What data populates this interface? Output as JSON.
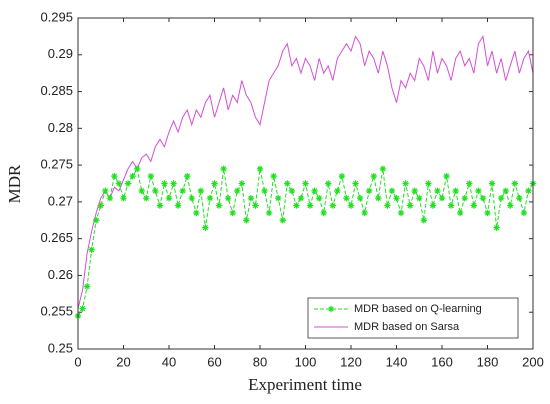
{
  "chart_data": {
    "type": "line",
    "xlabel": "Experiment time",
    "ylabel": "MDR",
    "x": [
      0,
      2,
      4,
      6,
      8,
      10,
      12,
      14,
      16,
      18,
      20,
      22,
      24,
      26,
      28,
      30,
      32,
      34,
      36,
      38,
      40,
      42,
      44,
      46,
      48,
      50,
      52,
      54,
      56,
      58,
      60,
      62,
      64,
      66,
      68,
      70,
      72,
      74,
      76,
      78,
      80,
      82,
      84,
      86,
      88,
      90,
      92,
      94,
      96,
      98,
      100,
      102,
      104,
      106,
      108,
      110,
      112,
      114,
      116,
      118,
      120,
      122,
      124,
      126,
      128,
      130,
      132,
      134,
      136,
      138,
      140,
      142,
      144,
      146,
      148,
      150,
      152,
      154,
      156,
      158,
      160,
      162,
      164,
      166,
      168,
      170,
      172,
      174,
      176,
      178,
      180,
      182,
      184,
      186,
      188,
      190,
      192,
      194,
      196,
      198,
      200
    ],
    "series": [
      {
        "name": "MDR based on Q-learning",
        "color": "#22e022",
        "dash": true,
        "marker": "star",
        "values": [
          0.2545,
          0.2555,
          0.2585,
          0.2635,
          0.2675,
          0.2695,
          0.2715,
          0.2705,
          0.2735,
          0.2725,
          0.2705,
          0.2725,
          0.2735,
          0.2745,
          0.2715,
          0.2705,
          0.2735,
          0.2715,
          0.2695,
          0.2725,
          0.2705,
          0.2725,
          0.2695,
          0.2715,
          0.2735,
          0.2705,
          0.2685,
          0.2715,
          0.2665,
          0.2705,
          0.2725,
          0.2695,
          0.2745,
          0.2705,
          0.2685,
          0.2715,
          0.2725,
          0.2675,
          0.2705,
          0.2695,
          0.2745,
          0.2715,
          0.2685,
          0.2735,
          0.2705,
          0.2675,
          0.2725,
          0.2715,
          0.2695,
          0.2705,
          0.2725,
          0.2695,
          0.2715,
          0.2705,
          0.2685,
          0.2725,
          0.2695,
          0.2715,
          0.2735,
          0.2705,
          0.2695,
          0.2725,
          0.2705,
          0.2685,
          0.2715,
          0.2735,
          0.2705,
          0.2745,
          0.2695,
          0.2715,
          0.2705,
          0.2685,
          0.2725,
          0.2695,
          0.2715,
          0.2705,
          0.2675,
          0.2725,
          0.2695,
          0.2715,
          0.2705,
          0.2735,
          0.2695,
          0.2715,
          0.2685,
          0.2705,
          0.2725,
          0.2695,
          0.2715,
          0.2705,
          0.2685,
          0.2725,
          0.2665,
          0.2705,
          0.2715,
          0.2695,
          0.2725,
          0.2705,
          0.2685,
          0.2715,
          0.2725
        ]
      },
      {
        "name": "MDR based on Sarsa",
        "color": "#d64fd6",
        "dash": false,
        "marker": "none",
        "values": [
          0.2555,
          0.258,
          0.263,
          0.266,
          0.2685,
          0.2705,
          0.2715,
          0.2705,
          0.272,
          0.2715,
          0.273,
          0.2745,
          0.2755,
          0.2745,
          0.276,
          0.2765,
          0.2755,
          0.2775,
          0.2785,
          0.2775,
          0.2795,
          0.281,
          0.2795,
          0.2815,
          0.2825,
          0.2805,
          0.2825,
          0.2815,
          0.2835,
          0.2845,
          0.2815,
          0.2835,
          0.2855,
          0.2825,
          0.2845,
          0.2835,
          0.2865,
          0.2845,
          0.2835,
          0.2815,
          0.2805,
          0.2835,
          0.2865,
          0.2875,
          0.2885,
          0.2905,
          0.2915,
          0.2885,
          0.2895,
          0.2875,
          0.2895,
          0.2885,
          0.2865,
          0.2895,
          0.2875,
          0.2885,
          0.2865,
          0.2895,
          0.2905,
          0.2915,
          0.2905,
          0.2925,
          0.2915,
          0.2885,
          0.2905,
          0.2895,
          0.2875,
          0.2905,
          0.2885,
          0.2855,
          0.2835,
          0.2865,
          0.2855,
          0.2875,
          0.2865,
          0.2895,
          0.2885,
          0.2865,
          0.2905,
          0.2875,
          0.2895,
          0.2885,
          0.2865,
          0.2895,
          0.2905,
          0.2885,
          0.2895,
          0.2875,
          0.2915,
          0.2925,
          0.2885,
          0.2905,
          0.2875,
          0.2895,
          0.2865,
          0.2885,
          0.2905,
          0.2875,
          0.2895,
          0.2905,
          0.2875
        ]
      }
    ],
    "xlim": [
      0,
      200
    ],
    "xticks": [
      0,
      20,
      40,
      60,
      80,
      100,
      120,
      140,
      160,
      180,
      200
    ],
    "ylim": [
      0.25,
      0.295
    ],
    "yticks": [
      0.25,
      0.255,
      0.26,
      0.265,
      0.27,
      0.275,
      0.28,
      0.285,
      0.29,
      0.295
    ],
    "grid": false,
    "legend": "lower right"
  }
}
